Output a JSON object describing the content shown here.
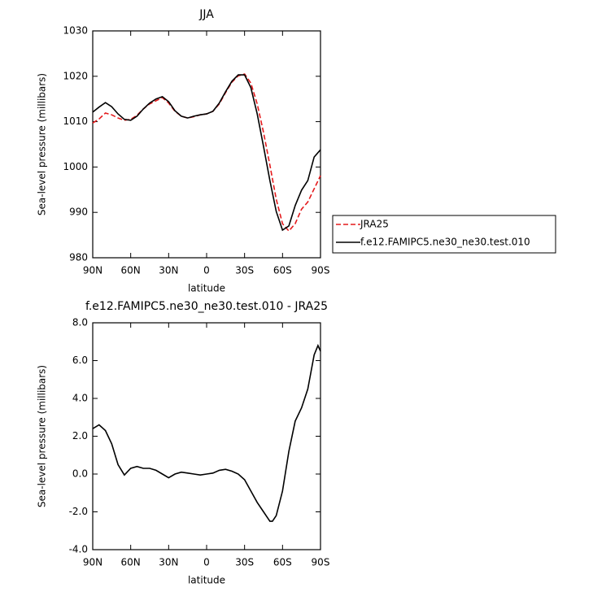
{
  "chart_data": [
    {
      "type": "line",
      "title": "JJA",
      "xlabel": "latitude",
      "ylabel": "Sea-level pressure (millibars)",
      "x": [
        90,
        85,
        80,
        75,
        70,
        65,
        60,
        55,
        50,
        45,
        40,
        35,
        30,
        25,
        20,
        15,
        10,
        5,
        0,
        -5,
        -10,
        -15,
        -20,
        -25,
        -30,
        -35,
        -40,
        -45,
        -50,
        -55,
        -60,
        -65,
        -70,
        -75,
        -80,
        -85,
        -90
      ],
      "xlim": [
        90,
        -90
      ],
      "xticks": [
        {
          "value": 90,
          "label": "90N"
        },
        {
          "value": 60,
          "label": "60N"
        },
        {
          "value": 30,
          "label": "30N"
        },
        0,
        {
          "value": -30,
          "label": "30S"
        },
        {
          "value": -60,
          "label": "60S"
        },
        {
          "value": -90,
          "label": "90S"
        }
      ],
      "ylim": [
        980,
        1030
      ],
      "yticks": [
        980,
        990,
        1000,
        1010,
        1020,
        1030
      ],
      "legend": "outside-right",
      "series": [
        {
          "name": "JRA25",
          "color": "#e41a1c",
          "dashed": true,
          "values": [
            1009.7,
            1010.6,
            1011.9,
            1011.5,
            1010.8,
            1010.3,
            1010.5,
            1011.4,
            1012.8,
            1013.9,
            1014.6,
            1015.3,
            1014.1,
            1012.3,
            1011.2,
            1010.8,
            1011.1,
            1011.5,
            1011.7,
            1012.3,
            1013.9,
            1016.4,
            1018.7,
            1020.1,
            1020.5,
            1018.5,
            1013.9,
            1007.6,
            1000.4,
            992.9,
            987.5,
            985.9,
            987.5,
            990.7,
            992.3,
            995.2,
            998.1
          ]
        },
        {
          "name": "f.e12.FAMIPC5.ne30_ne30.test.010",
          "color": "#000000",
          "dashed": false,
          "values": [
            1012.1,
            1013.2,
            1014.2,
            1013.3,
            1011.7,
            1010.5,
            1010.3,
            1011.2,
            1012.8,
            1014.1,
            1015.0,
            1015.5,
            1014.4,
            1012.4,
            1011.2,
            1010.8,
            1011.2,
            1011.5,
            1011.7,
            1012.3,
            1014.1,
            1016.6,
            1018.9,
            1020.3,
            1020.3,
            1017.5,
            1011.7,
            1004.5,
            997.0,
            990.2,
            986.1,
            987.0,
            991.5,
            994.9,
            997.0,
            1002.2,
            1003.8
          ]
        }
      ]
    },
    {
      "type": "line",
      "title": "f.e12.FAMIPC5.ne30_ne30.test.010 - JRA25",
      "xlabel": "latitude",
      "ylabel": "Sea-level pressure (millibars)",
      "x": [
        90,
        85,
        80,
        75,
        70,
        65,
        60,
        55,
        50,
        45,
        40,
        35,
        30,
        25,
        20,
        15,
        10,
        5,
        0,
        -5,
        -10,
        -15,
        -20,
        -25,
        -30,
        -35,
        -40,
        -45,
        -50,
        -52,
        -55,
        -60,
        -65,
        -70,
        -75,
        -80,
        -85,
        -88,
        -90
      ],
      "xlim": [
        90,
        -90
      ],
      "xticks": [
        {
          "value": 90,
          "label": "90N"
        },
        {
          "value": 60,
          "label": "60N"
        },
        {
          "value": 30,
          "label": "30N"
        },
        0,
        {
          "value": -30,
          "label": "30S"
        },
        {
          "value": -60,
          "label": "60S"
        },
        {
          "value": -90,
          "label": "90S"
        }
      ],
      "ylim": [
        -4,
        8
      ],
      "yticks": [
        {
          "value": -4,
          "label": "-4.0"
        },
        {
          "value": -2,
          "label": "-2.0"
        },
        {
          "value": 0,
          "label": "0.0"
        },
        {
          "value": 2,
          "label": "2.0"
        },
        {
          "value": 4,
          "label": "4.0"
        },
        {
          "value": 6,
          "label": "6.0"
        },
        {
          "value": 8,
          "label": "8.0"
        }
      ],
      "series": [
        {
          "name": "f.e12.FAMIPC5.ne30_ne30.test.010 - JRA25",
          "color": "#000000",
          "dashed": false,
          "values": [
            2.4,
            2.6,
            2.3,
            1.6,
            0.5,
            -0.05,
            0.3,
            0.4,
            0.3,
            0.3,
            0.2,
            0.0,
            -0.2,
            0.0,
            0.1,
            0.05,
            0.0,
            -0.05,
            0.0,
            0.05,
            0.2,
            0.25,
            0.15,
            0.0,
            -0.3,
            -0.9,
            -1.5,
            -2.0,
            -2.5,
            -2.5,
            -2.2,
            -0.9,
            1.2,
            2.8,
            3.5,
            4.5,
            6.3,
            6.8,
            6.5
          ]
        }
      ]
    }
  ]
}
